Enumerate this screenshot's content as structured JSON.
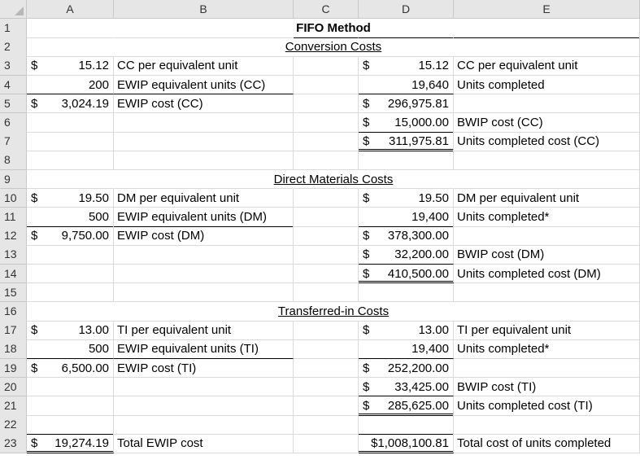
{
  "columns": [
    "A",
    "B",
    "C",
    "D",
    "E"
  ],
  "rows": [
    "1",
    "2",
    "3",
    "4",
    "5",
    "6",
    "7",
    "8",
    "9",
    "10",
    "11",
    "12",
    "13",
    "14",
    "15",
    "16",
    "17",
    "18",
    "19",
    "20",
    "21",
    "22",
    "23"
  ],
  "title": "FIFO Method",
  "sections": {
    "cc": {
      "heading": "Conversion Costs",
      "a_rows": [
        {
          "cur": "$",
          "val": "15.12",
          "label": "CC per equivalent unit"
        },
        {
          "cur": "",
          "val": "200",
          "label": "EWIP equivalent units (CC)"
        },
        {
          "cur": "$",
          "val": "3,024.19",
          "label": "EWIP cost (CC)"
        }
      ],
      "d_rows": [
        {
          "cur": "$",
          "val": "15.12",
          "label": "CC per equivalent unit"
        },
        {
          "cur": "",
          "val": "19,640",
          "label": "Units completed"
        },
        {
          "cur": "$",
          "val": "296,975.81",
          "label": ""
        },
        {
          "cur": "$",
          "val": "15,000.00",
          "label": "BWIP cost (CC)"
        },
        {
          "cur": "$",
          "val": "311,975.81",
          "label": "Units completed cost (CC)"
        }
      ]
    },
    "dm": {
      "heading": "Direct Materials Costs",
      "a_rows": [
        {
          "cur": "$",
          "val": "19.50",
          "label": "DM per equivalent unit"
        },
        {
          "cur": "",
          "val": "500",
          "label": "EWIP equivalent units (DM)"
        },
        {
          "cur": "$",
          "val": "9,750.00",
          "label": "EWIP cost (DM)"
        }
      ],
      "d_rows": [
        {
          "cur": "$",
          "val": "19.50",
          "label": "DM per equivalent unit"
        },
        {
          "cur": "",
          "val": "19,400",
          "label": "Units completed*"
        },
        {
          "cur": "$",
          "val": "378,300.00",
          "label": ""
        },
        {
          "cur": "$",
          "val": "32,200.00",
          "label": "BWIP cost (DM)"
        },
        {
          "cur": "$",
          "val": "410,500.00",
          "label": "Units completed cost (DM)"
        }
      ]
    },
    "ti": {
      "heading": "Transferred-in Costs",
      "a_rows": [
        {
          "cur": "$",
          "val": "13.00",
          "label": "TI per equivalent unit"
        },
        {
          "cur": "",
          "val": "500",
          "label": "EWIP equivalent units (TI)"
        },
        {
          "cur": "$",
          "val": "6,500.00",
          "label": "EWIP cost (TI)"
        }
      ],
      "d_rows": [
        {
          "cur": "$",
          "val": "13.00",
          "label": "TI per equivalent unit"
        },
        {
          "cur": "",
          "val": "19,400",
          "label": "Units completed*"
        },
        {
          "cur": "$",
          "val": "252,200.00",
          "label": ""
        },
        {
          "cur": "$",
          "val": "33,425.00",
          "label": "BWIP cost (TI)"
        },
        {
          "cur": "$",
          "val": "285,625.00",
          "label": "Units completed cost (TI)"
        }
      ]
    }
  },
  "totals": {
    "a_cur": "$",
    "a_val": "19,274.19",
    "a_label": "Total EWIP cost",
    "d_val": "$1,008,100.81",
    "d_label": "Total cost of units completed"
  }
}
